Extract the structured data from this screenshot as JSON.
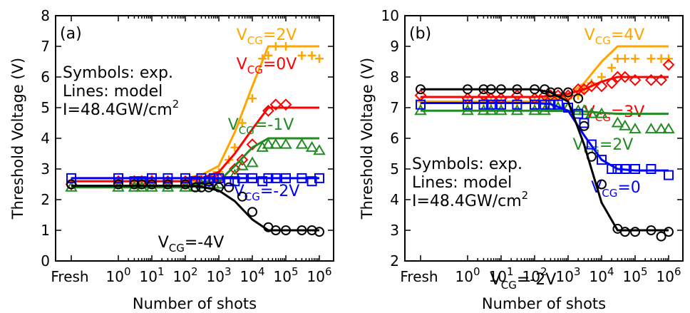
{
  "chart_data": [
    {
      "type": "line",
      "panel_label": "(a)",
      "xlabel": "Number of shots",
      "ylabel": "Threshold Voltage (V)",
      "xscale": "log, with a 'Fresh' category at the left",
      "x_ticks": [
        "Fresh",
        "10^0",
        "10^1",
        "10^2",
        "10^3",
        "10^4",
        "10^5",
        "10^6"
      ],
      "ylim": [
        0,
        8
      ],
      "y_ticks": [
        "0",
        "1",
        "2",
        "3",
        "4",
        "5",
        "6",
        "7",
        "8"
      ],
      "notes": [
        "Symbols: exp.",
        "Lines: model",
        "I=48.4GW/cm^2"
      ],
      "note_parts": {
        "line3_main": "I=48.4GW/cm",
        "line3_sup": "2"
      },
      "series": [
        {
          "name": "V_CG=2V",
          "label_main": "V",
          "label_sub": "CG",
          "label_rest": "=2V",
          "color": "#ffa500",
          "marker": "plus",
          "model_x": [
            "Fresh",
            1,
            10,
            100,
            300,
            1000,
            3000,
            10000,
            30000,
            100000,
            1000000
          ],
          "model_y": [
            2.7,
            2.7,
            2.7,
            2.7,
            2.8,
            3.1,
            4.2,
            5.7,
            7.0,
            7.0,
            7.0
          ],
          "exp_x": [
            "Fresh",
            1,
            3,
            5,
            10,
            30,
            100,
            200,
            300,
            500,
            700,
            1000,
            2000,
            3000,
            5000,
            10000,
            20000,
            30000,
            50000,
            100000,
            300000,
            600000,
            1000000
          ],
          "exp_y": [
            2.6,
            2.6,
            2.6,
            2.6,
            2.7,
            2.6,
            2.6,
            2.6,
            2.7,
            2.6,
            2.8,
            2.9,
            3.3,
            3.7,
            4.5,
            5.3,
            6.6,
            6.7,
            7.0,
            7.0,
            6.7,
            6.7,
            6.6
          ]
        },
        {
          "name": "V_CG=0V",
          "label_main": "V",
          "label_sub": "CG",
          "label_rest": "=0V",
          "color": "#ff0000",
          "marker": "diamond",
          "model_x": [
            "Fresh",
            1,
            10,
            100,
            300,
            1000,
            3000,
            10000,
            30000,
            100000,
            1000000
          ],
          "model_y": [
            2.6,
            2.6,
            2.6,
            2.6,
            2.7,
            2.9,
            3.5,
            4.3,
            5.0,
            5.0,
            5.0
          ],
          "exp_x": [
            "Fresh",
            1,
            3,
            5,
            10,
            30,
            100,
            200,
            300,
            500,
            700,
            1000,
            3000,
            5000,
            10000,
            30000,
            50000,
            100000
          ],
          "exp_y": [
            2.5,
            2.6,
            2.6,
            2.6,
            2.6,
            2.6,
            2.6,
            2.6,
            2.6,
            2.6,
            2.6,
            2.7,
            3.0,
            3.3,
            3.8,
            4.9,
            5.1,
            5.1
          ]
        },
        {
          "name": "V_CG=-1V",
          "label_main": "V",
          "label_sub": "CG",
          "label_rest": "=-1V",
          "color": "#228b22",
          "marker": "triangle",
          "model_x": [
            "Fresh",
            1,
            10,
            100,
            300,
            1000,
            3000,
            10000,
            30000,
            100000,
            1000000
          ],
          "model_y": [
            2.4,
            2.4,
            2.4,
            2.4,
            2.5,
            2.6,
            3.1,
            3.7,
            4.0,
            4.0,
            4.0
          ],
          "exp_x": [
            "Fresh",
            1,
            3,
            5,
            10,
            30,
            100,
            200,
            300,
            500,
            700,
            1000,
            3000,
            5000,
            10000,
            20000,
            30000,
            50000,
            100000,
            300000,
            600000,
            1000000
          ],
          "exp_y": [
            2.4,
            2.4,
            2.4,
            2.4,
            2.4,
            2.4,
            2.4,
            2.4,
            2.5,
            2.5,
            2.5,
            2.5,
            2.8,
            3.1,
            3.2,
            3.7,
            3.8,
            3.8,
            3.8,
            3.8,
            3.7,
            3.6
          ]
        },
        {
          "name": "V_CG=-2V",
          "label_main": "V",
          "label_sub": "CG",
          "label_rest": "=-2V",
          "color": "#0000ff",
          "marker": "square",
          "model_x": [
            "Fresh",
            1,
            10,
            100,
            1000,
            3000,
            10000,
            30000,
            100000,
            1000000
          ],
          "model_y": [
            2.7,
            2.7,
            2.7,
            2.7,
            2.7,
            2.7,
            2.7,
            2.7,
            2.7,
            2.7
          ],
          "exp_x": [
            "Fresh",
            1,
            3,
            5,
            10,
            30,
            100,
            200,
            300,
            500,
            700,
            1000,
            2000,
            3000,
            5000,
            10000,
            20000,
            30000,
            50000,
            100000,
            300000,
            600000,
            1000000
          ],
          "exp_y": [
            2.7,
            2.7,
            2.6,
            2.6,
            2.7,
            2.7,
            2.7,
            2.6,
            2.7,
            2.6,
            2.7,
            2.7,
            2.6,
            2.6,
            2.7,
            2.7,
            2.6,
            2.7,
            2.7,
            2.7,
            2.7,
            2.6,
            2.7
          ]
        },
        {
          "name": "V_CG=-4V",
          "label_main": "V",
          "label_sub": "CG",
          "label_rest": "=-4V",
          "color": "#000000",
          "marker": "circle",
          "model_x": [
            "Fresh",
            1,
            10,
            100,
            300,
            1000,
            3000,
            10000,
            30000,
            100000,
            1000000
          ],
          "model_y": [
            2.45,
            2.45,
            2.45,
            2.45,
            2.42,
            2.3,
            1.95,
            1.35,
            1.0,
            1.0,
            1.0
          ],
          "exp_x": [
            "Fresh",
            1,
            3,
            5,
            10,
            30,
            100,
            200,
            300,
            500,
            1000,
            2000,
            5000,
            10000,
            30000,
            50000,
            100000,
            300000,
            600000,
            1000000
          ],
          "exp_y": [
            2.5,
            2.5,
            2.5,
            2.5,
            2.5,
            2.5,
            2.5,
            2.4,
            2.4,
            2.4,
            2.4,
            2.4,
            2.1,
            1.6,
            1.1,
            1.0,
            1.0,
            1.0,
            1.0,
            0.95
          ]
        }
      ]
    },
    {
      "type": "line",
      "panel_label": "(b)",
      "xlabel": "Number of shots",
      "ylabel": "Threshold Voltage (V)",
      "xscale": "log, with a 'Fresh' category at the left",
      "x_ticks": [
        "Fresh",
        "10^0",
        "10^1",
        "10^2",
        "10^3",
        "10^4",
        "10^5",
        "10^6"
      ],
      "ylim": [
        2,
        10
      ],
      "y_ticks": [
        "2",
        "3",
        "4",
        "5",
        "6",
        "7",
        "8",
        "9",
        "10"
      ],
      "notes": [
        "Symbols: exp.",
        "Lines: model",
        "I=48.4GW/cm^2"
      ],
      "note_parts": {
        "line3_main": "I=48.4GW/cm",
        "line3_sup": "2"
      },
      "series": [
        {
          "name": "V_CG=4V",
          "label_main": "V",
          "label_sub": "CG",
          "label_rest": "=4V",
          "color": "#ffa500",
          "marker": "plus",
          "model_x": [
            "Fresh",
            1,
            10,
            100,
            300,
            1000,
            3000,
            10000,
            30000,
            100000,
            1000000
          ],
          "model_y": [
            7.2,
            7.2,
            7.2,
            7.2,
            7.25,
            7.4,
            7.8,
            8.5,
            9.0,
            9.0,
            9.0
          ],
          "exp_x": [
            "Fresh",
            1,
            3,
            5,
            10,
            30,
            100,
            200,
            300,
            500,
            1000,
            2000,
            3000,
            5000,
            10000,
            20000,
            30000,
            50000,
            100000,
            300000,
            600000,
            1000000
          ],
          "exp_y": [
            7.2,
            7.2,
            7.2,
            7.2,
            7.2,
            7.2,
            7.2,
            7.2,
            7.3,
            7.3,
            7.3,
            7.4,
            7.6,
            7.8,
            8.0,
            8.3,
            8.6,
            8.6,
            8.6,
            8.6,
            8.6,
            8.6
          ]
        },
        {
          "name": "V_CG=3V",
          "label_main": "V",
          "label_sub": "CG",
          "label_rest": "=3V",
          "color": "#ff0000",
          "marker": "diamond",
          "model_x": [
            "Fresh",
            1,
            10,
            100,
            300,
            1000,
            3000,
            10000,
            30000,
            100000,
            1000000
          ],
          "model_y": [
            7.35,
            7.35,
            7.35,
            7.35,
            7.38,
            7.45,
            7.6,
            7.85,
            8.0,
            8.0,
            8.0
          ],
          "exp_x": [
            "Fresh",
            1,
            3,
            5,
            10,
            30,
            100,
            200,
            300,
            500,
            1000,
            2000,
            3000,
            5000,
            10000,
            20000,
            30000,
            50000,
            100000,
            300000,
            600000,
            1000000
          ],
          "exp_y": [
            7.4,
            7.3,
            7.4,
            7.3,
            7.3,
            7.4,
            7.3,
            7.4,
            7.4,
            7.4,
            7.4,
            7.6,
            7.6,
            7.7,
            7.7,
            7.8,
            8.0,
            8.0,
            7.9,
            7.9,
            7.9,
            8.4
          ]
        },
        {
          "name": "V_CG=2V",
          "label_main": "V",
          "label_sub": "CG",
          "label_rest": "=2V",
          "color": "#228b22",
          "marker": "triangle",
          "model_x": [
            "Fresh",
            1,
            10,
            100,
            1000,
            3000,
            10000,
            30000,
            100000,
            1000000
          ],
          "model_y": [
            6.9,
            6.9,
            6.9,
            6.9,
            6.9,
            6.88,
            6.83,
            6.8,
            6.8,
            6.8
          ],
          "exp_x": [
            "Fresh",
            1,
            3,
            5,
            10,
            30,
            100,
            200,
            300,
            500,
            1000,
            2000,
            3000,
            5000,
            10000,
            30000,
            50000,
            100000,
            300000,
            600000,
            1000000
          ],
          "exp_y": [
            6.9,
            6.9,
            6.9,
            6.9,
            6.9,
            6.9,
            6.9,
            6.9,
            7.0,
            7.0,
            7.0,
            6.9,
            6.9,
            6.8,
            6.8,
            6.5,
            6.4,
            6.3,
            6.3,
            6.3,
            6.3
          ]
        },
        {
          "name": "V_CG=0",
          "label_main": "V",
          "label_sub": "CG",
          "label_rest": "=0",
          "color": "#0000ff",
          "marker": "square",
          "model_x": [
            "Fresh",
            1,
            10,
            100,
            300,
            1000,
            3000,
            10000,
            30000,
            100000,
            1000000
          ],
          "model_y": [
            7.15,
            7.15,
            7.15,
            7.15,
            7.12,
            6.9,
            6.1,
            5.3,
            5.0,
            4.95,
            4.95
          ],
          "exp_x": [
            "Fresh",
            1,
            3,
            5,
            10,
            30,
            100,
            200,
            300,
            500,
            1000,
            2000,
            3000,
            5000,
            10000,
            20000,
            30000,
            50000,
            100000,
            300000,
            1000000
          ],
          "exp_y": [
            7.1,
            7.1,
            7.1,
            7.1,
            7.1,
            7.1,
            7.1,
            7.1,
            7.1,
            7.1,
            7.0,
            6.8,
            6.5,
            5.8,
            5.3,
            5.0,
            5.0,
            5.0,
            5.0,
            5.0,
            4.8
          ]
        },
        {
          "name": "V_CG=-2V",
          "label_main": "V",
          "label_sub": "CG",
          "label_rest": "=-2V",
          "color": "#000000",
          "marker": "circle",
          "model_x": [
            "Fresh",
            1,
            10,
            100,
            300,
            1000,
            3000,
            10000,
            30000,
            100000,
            1000000
          ],
          "model_y": [
            7.6,
            7.6,
            7.6,
            7.6,
            7.5,
            7.2,
            5.8,
            3.9,
            3.0,
            3.0,
            3.0
          ],
          "exp_x": [
            "Fresh",
            1,
            3,
            5,
            10,
            30,
            100,
            200,
            300,
            500,
            1000,
            2000,
            3000,
            5000,
            10000,
            30000,
            50000,
            100000,
            300000,
            600000,
            1000000
          ],
          "exp_y": [
            7.6,
            7.6,
            7.6,
            7.6,
            7.6,
            7.6,
            7.6,
            7.6,
            7.5,
            7.5,
            7.5,
            7.3,
            6.4,
            5.4,
            4.5,
            3.05,
            2.95,
            2.95,
            3.0,
            2.8,
            2.95
          ]
        }
      ]
    }
  ]
}
